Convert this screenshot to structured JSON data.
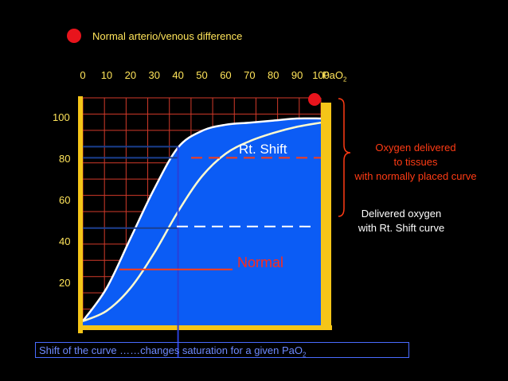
{
  "legend": {
    "dot_color": "#e8141c",
    "text": "Normal arterio/venous difference"
  },
  "xaxis": {
    "ticks": [
      "0",
      "10",
      "20",
      "30",
      "40",
      "50",
      "60",
      "70",
      "80",
      "90",
      "100"
    ],
    "label_main": "PaO",
    "label_sub": "2"
  },
  "yaxis": {
    "ticks": [
      "100",
      "80",
      "60",
      "40",
      "20"
    ]
  },
  "labels": {
    "rt_shift": "Rt. Shift",
    "normal": "Normal",
    "oxygen_delivered": [
      "Oxygen delivered",
      "to tissues",
      "with normally placed curve"
    ],
    "delivered_rt": [
      "Delivered oxygen",
      "with Rt. Shift curve"
    ]
  },
  "caption": {
    "main": "Shift of the curve ……changes  saturation for a given PaO",
    "sub": "2"
  },
  "colors": {
    "grid": "#d23a2a",
    "frame": "#f5c518",
    "fill": "#0b5cf5",
    "curve": "#ffffff",
    "accent": "#ff3b14"
  },
  "chart_data": {
    "type": "line",
    "x": [
      0,
      10,
      20,
      30,
      40,
      50,
      60,
      70,
      80,
      90,
      100
    ],
    "xlim": [
      0,
      100
    ],
    "ylim": [
      0,
      110
    ],
    "series": [
      {
        "name": "Normal",
        "values": [
          2,
          18,
          42,
          66,
          86,
          94,
          97,
          98,
          99,
          100,
          100
        ]
      },
      {
        "name": "Rt. Shift",
        "values": [
          2,
          7,
          18,
          35,
          55,
          72,
          83,
          89,
          93,
          96,
          98
        ]
      }
    ],
    "grid": true
  }
}
